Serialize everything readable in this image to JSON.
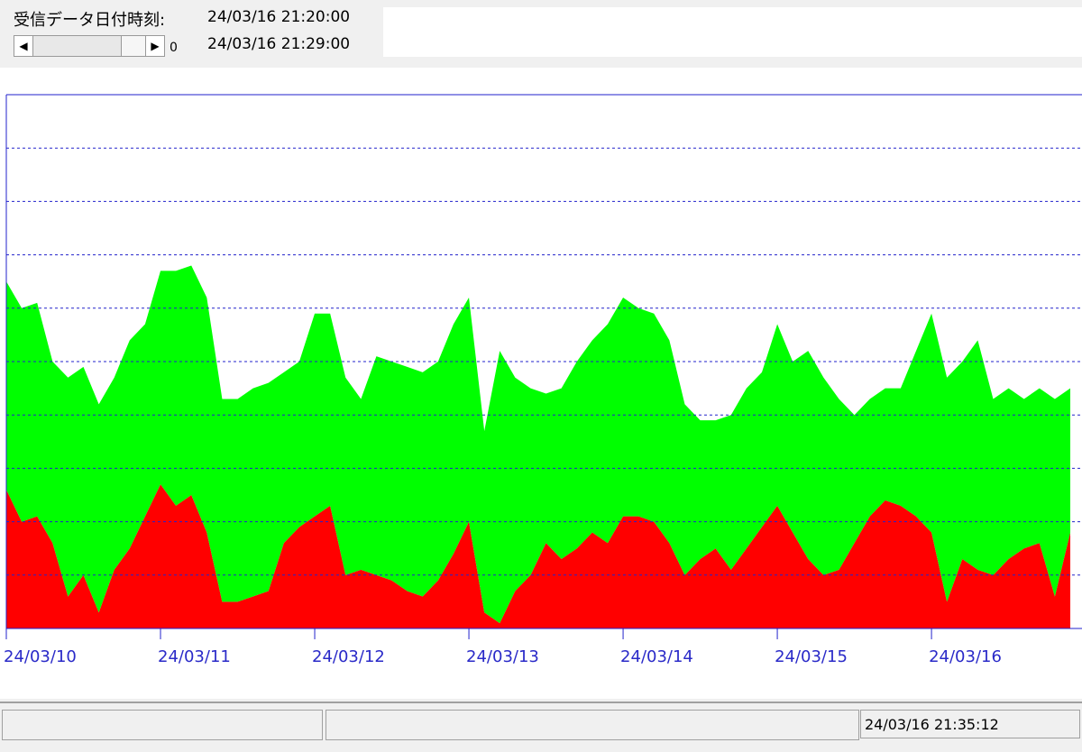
{
  "header": {
    "label": "受信データ日付時刻:",
    "time_from": "24/03/16 21:20:00",
    "time_to": "24/03/16 21:29:00",
    "scroll_value": "0"
  },
  "chart_data": {
    "type": "area",
    "stacked": true,
    "x": [
      0,
      0.1,
      0.2,
      0.3,
      0.4,
      0.5,
      0.6,
      0.7,
      0.8,
      0.9,
      1,
      1.1,
      1.2,
      1.3,
      1.4,
      1.5,
      1.6,
      1.7,
      1.8,
      1.9,
      2,
      2.1,
      2.2,
      2.3,
      2.4,
      2.5,
      2.6,
      2.7,
      2.8,
      2.9,
      3,
      3.1,
      3.2,
      3.3,
      3.4,
      3.5,
      3.6,
      3.7,
      3.8,
      3.9,
      4,
      4.1,
      4.2,
      4.3,
      4.4,
      4.5,
      4.6,
      4.7,
      4.8,
      4.9,
      5,
      5.1,
      5.2,
      5.3,
      5.4,
      5.5,
      5.6,
      5.7,
      5.8,
      5.9,
      6,
      6.1,
      6.2,
      6.3,
      6.4,
      6.5,
      6.6,
      6.7,
      6.8,
      6.9
    ],
    "xlim": [
      0,
      6.9
    ],
    "xticks": [
      {
        "value": 0,
        "label": "24/03/10"
      },
      {
        "value": 1,
        "label": "24/03/11"
      },
      {
        "value": 2,
        "label": "24/03/12"
      },
      {
        "value": 3,
        "label": "24/03/13"
      },
      {
        "value": 4,
        "label": "24/03/14"
      },
      {
        "value": 5,
        "label": "24/03/15"
      },
      {
        "value": 6,
        "label": "24/03/16"
      }
    ],
    "ylim": [
      0,
      10
    ],
    "yticks": [
      1,
      2,
      3,
      4,
      5,
      6,
      7,
      8,
      9
    ],
    "grid": true,
    "series": [
      {
        "color": "#ff0000",
        "values": [
          2.6,
          2.0,
          2.1,
          1.6,
          0.6,
          1.0,
          0.3,
          1.1,
          1.5,
          2.1,
          2.7,
          2.3,
          2.5,
          1.8,
          0.5,
          0.5,
          0.6,
          0.7,
          1.6,
          1.9,
          2.1,
          2.3,
          1.0,
          1.1,
          1.0,
          0.9,
          0.7,
          0.6,
          0.9,
          1.4,
          2.0,
          0.3,
          0.1,
          0.7,
          1.0,
          1.6,
          1.3,
          1.5,
          1.8,
          1.6,
          2.1,
          2.1,
          2.0,
          1.6,
          1.0,
          1.3,
          1.5,
          1.1,
          1.5,
          1.9,
          2.3,
          1.8,
          1.3,
          1.0,
          1.1,
          1.6,
          2.1,
          2.4,
          2.3,
          2.1,
          1.8,
          0.5,
          1.3,
          1.1,
          1.0,
          1.3,
          1.5,
          1.6,
          0.6,
          1.8
        ]
      },
      {
        "color": "#00ff00",
        "values": [
          3.9,
          4.0,
          4.0,
          3.4,
          4.1,
          3.9,
          3.9,
          3.6,
          3.9,
          3.6,
          4.0,
          4.4,
          4.3,
          4.4,
          3.8,
          3.8,
          3.9,
          3.9,
          3.2,
          3.1,
          3.8,
          3.6,
          3.7,
          3.2,
          4.1,
          4.1,
          4.2,
          4.2,
          4.1,
          4.3,
          4.2,
          3.4,
          5.1,
          4.0,
          3.5,
          2.8,
          3.2,
          3.5,
          3.6,
          4.1,
          4.1,
          3.9,
          3.9,
          3.8,
          3.2,
          2.6,
          2.4,
          2.9,
          3.0,
          2.9,
          3.4,
          3.2,
          3.9,
          3.7,
          3.2,
          2.4,
          2.2,
          2.1,
          2.2,
          3.1,
          4.1,
          4.2,
          3.7,
          4.3,
          3.3,
          3.2,
          2.8,
          2.9,
          3.7,
          2.7
        ]
      }
    ]
  },
  "status_bar": {
    "timestamp": "24/03/16 21:35:12"
  }
}
